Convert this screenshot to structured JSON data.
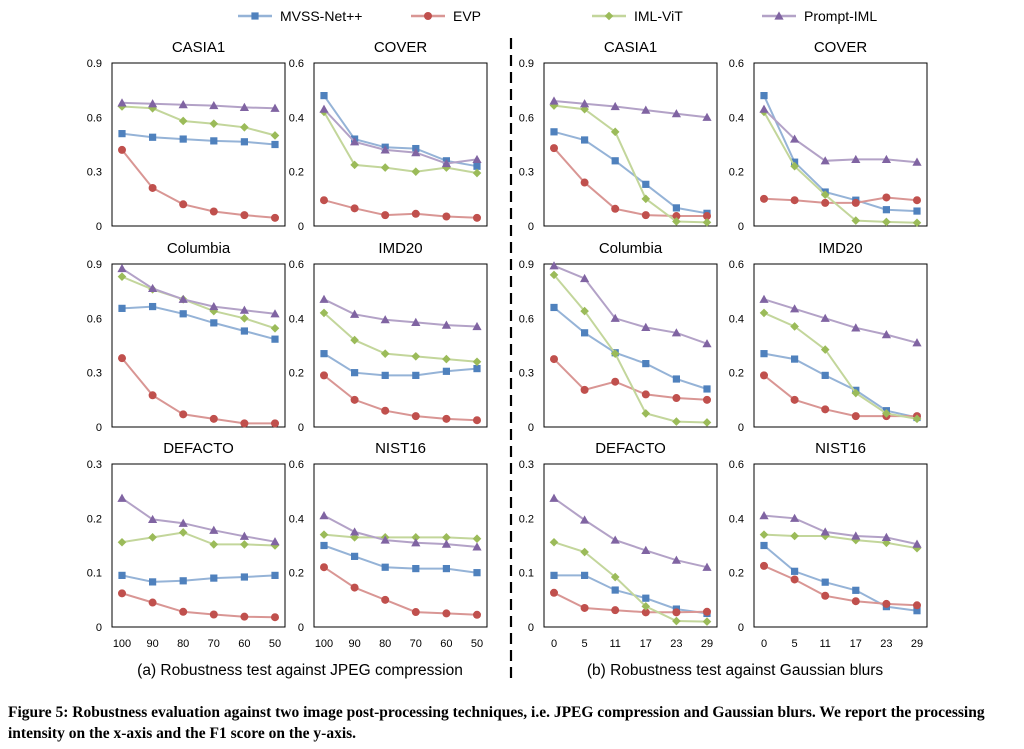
{
  "legend": {
    "entries": [
      {
        "name": "MVSS-Net++",
        "color": "#4f81bd",
        "marker": "square"
      },
      {
        "name": "EVP",
        "color": "#c0504d",
        "marker": "circle"
      },
      {
        "name": "IML-ViT",
        "color": "#9bbb59",
        "marker": "diamond"
      },
      {
        "name": "Prompt-IML",
        "color": "#8064a2",
        "marker": "triangle"
      }
    ]
  },
  "subcaptions": {
    "a": "(a) Robustness test against JPEG compression",
    "b": "(b) Robustness test against Gaussian blurs"
  },
  "caption": "Figure 5: Robustness evaluation against two image post-processing techniques, i.e. JPEG compression and Gaussian blurs. We report the processing intensity on the x-axis and the F1 score on the y-axis.",
  "chart_data": [
    {
      "type": "line",
      "title": "CASIA1",
      "group": "JPEG",
      "x": [
        "100",
        "90",
        "80",
        "70",
        "60",
        "50"
      ],
      "ylim": [
        0,
        0.9
      ],
      "yticks": [
        "0",
        "0.3",
        "0.6",
        "0.9"
      ],
      "series": [
        {
          "name": "MVSS-Net++",
          "values": [
            0.51,
            0.49,
            0.48,
            0.47,
            0.465,
            0.45
          ]
        },
        {
          "name": "EVP",
          "values": [
            0.42,
            0.21,
            0.12,
            0.08,
            0.06,
            0.045
          ]
        },
        {
          "name": "IML-ViT",
          "values": [
            0.66,
            0.65,
            0.58,
            0.565,
            0.545,
            0.5
          ]
        },
        {
          "name": "Prompt-IML",
          "values": [
            0.68,
            0.675,
            0.67,
            0.665,
            0.655,
            0.65
          ]
        }
      ]
    },
    {
      "type": "line",
      "title": "COVER",
      "group": "JPEG",
      "x": [
        "100",
        "90",
        "80",
        "70",
        "60",
        "50"
      ],
      "ylim": [
        0,
        0.6
      ],
      "yticks": [
        "0",
        "0.2",
        "0.4",
        "0.6"
      ],
      "series": [
        {
          "name": "MVSS-Net++",
          "values": [
            0.48,
            0.32,
            0.29,
            0.285,
            0.24,
            0.22
          ]
        },
        {
          "name": "EVP",
          "values": [
            0.095,
            0.065,
            0.04,
            0.045,
            0.035,
            0.03
          ]
        },
        {
          "name": "IML-ViT",
          "values": [
            0.42,
            0.225,
            0.215,
            0.2,
            0.215,
            0.195
          ]
        },
        {
          "name": "Prompt-IML",
          "values": [
            0.43,
            0.31,
            0.28,
            0.27,
            0.23,
            0.245
          ]
        }
      ]
    },
    {
      "type": "line",
      "title": "CASIA1",
      "group": "Blur",
      "x": [
        "0",
        "5",
        "11",
        "17",
        "23",
        "29"
      ],
      "ylim": [
        0,
        0.9
      ],
      "yticks": [
        "0",
        "0.3",
        "0.6",
        "0.9"
      ],
      "series": [
        {
          "name": "MVSS-Net++",
          "values": [
            0.52,
            0.475,
            0.36,
            0.23,
            0.1,
            0.07
          ]
        },
        {
          "name": "EVP",
          "values": [
            0.43,
            0.24,
            0.095,
            0.06,
            0.055,
            0.055
          ]
        },
        {
          "name": "IML-ViT",
          "values": [
            0.665,
            0.645,
            0.52,
            0.15,
            0.025,
            0.02
          ]
        },
        {
          "name": "Prompt-IML",
          "values": [
            0.69,
            0.675,
            0.66,
            0.64,
            0.62,
            0.6
          ]
        }
      ]
    },
    {
      "type": "line",
      "title": "COVER",
      "group": "Blur",
      "x": [
        "0",
        "5",
        "11",
        "17",
        "23",
        "29"
      ],
      "ylim": [
        0,
        0.6
      ],
      "yticks": [
        "0",
        "0.2",
        "0.4",
        "0.6"
      ],
      "series": [
        {
          "name": "MVSS-Net++",
          "values": [
            0.48,
            0.235,
            0.125,
            0.095,
            0.06,
            0.055
          ]
        },
        {
          "name": "EVP",
          "values": [
            0.1,
            0.095,
            0.085,
            0.085,
            0.105,
            0.095
          ]
        },
        {
          "name": "IML-ViT",
          "values": [
            0.42,
            0.22,
            0.115,
            0.02,
            0.015,
            0.012
          ]
        },
        {
          "name": "Prompt-IML",
          "values": [
            0.43,
            0.32,
            0.24,
            0.245,
            0.245,
            0.235
          ]
        }
      ]
    },
    {
      "type": "line",
      "title": "Columbia",
      "group": "JPEG",
      "x": [
        "100",
        "90",
        "80",
        "70",
        "60",
        "50"
      ],
      "ylim": [
        0,
        0.9
      ],
      "yticks": [
        "0",
        "0.3",
        "0.6",
        "0.9"
      ],
      "series": [
        {
          "name": "MVSS-Net++",
          "values": [
            0.655,
            0.665,
            0.625,
            0.575,
            0.53,
            0.485
          ]
        },
        {
          "name": "EVP",
          "values": [
            0.38,
            0.175,
            0.07,
            0.045,
            0.02,
            0.02
          ]
        },
        {
          "name": "IML-ViT",
          "values": [
            0.83,
            0.76,
            0.705,
            0.64,
            0.6,
            0.545
          ]
        },
        {
          "name": "Prompt-IML",
          "values": [
            0.875,
            0.765,
            0.705,
            0.665,
            0.645,
            0.625
          ]
        }
      ]
    },
    {
      "type": "line",
      "title": "IMD20",
      "group": "JPEG",
      "x": [
        "100",
        "90",
        "80",
        "70",
        "60",
        "50"
      ],
      "ylim": [
        0,
        0.6
      ],
      "yticks": [
        "0",
        "0.2",
        "0.4",
        "0.6"
      ],
      "series": [
        {
          "name": "MVSS-Net++",
          "values": [
            0.27,
            0.2,
            0.19,
            0.19,
            0.205,
            0.215
          ]
        },
        {
          "name": "EVP",
          "values": [
            0.19,
            0.1,
            0.06,
            0.04,
            0.03,
            0.025
          ]
        },
        {
          "name": "IML-ViT",
          "values": [
            0.42,
            0.32,
            0.27,
            0.26,
            0.25,
            0.24
          ]
        },
        {
          "name": "Prompt-IML",
          "values": [
            0.47,
            0.415,
            0.395,
            0.385,
            0.375,
            0.37
          ]
        }
      ]
    },
    {
      "type": "line",
      "title": "Columbia",
      "group": "Blur",
      "x": [
        "0",
        "5",
        "11",
        "17",
        "23",
        "29"
      ],
      "ylim": [
        0,
        0.9
      ],
      "yticks": [
        "0",
        "0.3",
        "0.6",
        "0.9"
      ],
      "series": [
        {
          "name": "MVSS-Net++",
          "values": [
            0.66,
            0.52,
            0.41,
            0.35,
            0.265,
            0.21
          ]
        },
        {
          "name": "EVP",
          "values": [
            0.375,
            0.205,
            0.25,
            0.18,
            0.16,
            0.15
          ]
        },
        {
          "name": "IML-ViT",
          "values": [
            0.84,
            0.64,
            0.405,
            0.075,
            0.03,
            0.025
          ]
        },
        {
          "name": "Prompt-IML",
          "values": [
            0.89,
            0.82,
            0.6,
            0.55,
            0.52,
            0.46
          ]
        }
      ]
    },
    {
      "type": "line",
      "title": "IMD20",
      "group": "Blur",
      "x": [
        "0",
        "5",
        "11",
        "17",
        "23",
        "29"
      ],
      "ylim": [
        0,
        0.6
      ],
      "yticks": [
        "0",
        "0.2",
        "0.4",
        "0.6"
      ],
      "series": [
        {
          "name": "MVSS-Net++",
          "values": [
            0.27,
            0.25,
            0.19,
            0.135,
            0.06,
            0.035
          ]
        },
        {
          "name": "EVP",
          "values": [
            0.19,
            0.1,
            0.065,
            0.04,
            0.04,
            0.04
          ]
        },
        {
          "name": "IML-ViT",
          "values": [
            0.42,
            0.37,
            0.285,
            0.125,
            0.05,
            0.03
          ]
        },
        {
          "name": "Prompt-IML",
          "values": [
            0.47,
            0.435,
            0.4,
            0.365,
            0.34,
            0.31
          ]
        }
      ]
    },
    {
      "type": "line",
      "title": "DEFACTO",
      "group": "JPEG",
      "x": [
        "100",
        "90",
        "80",
        "70",
        "60",
        "50"
      ],
      "ylim": [
        0,
        0.3
      ],
      "yticks": [
        "0",
        "0.1",
        "0.2",
        "0.3"
      ],
      "series": [
        {
          "name": "MVSS-Net++",
          "values": [
            0.095,
            0.083,
            0.085,
            0.09,
            0.092,
            0.095
          ]
        },
        {
          "name": "EVP",
          "values": [
            0.062,
            0.045,
            0.028,
            0.023,
            0.019,
            0.018
          ]
        },
        {
          "name": "IML-ViT",
          "values": [
            0.156,
            0.165,
            0.174,
            0.152,
            0.152,
            0.15
          ]
        },
        {
          "name": "Prompt-IML",
          "values": [
            0.237,
            0.198,
            0.191,
            0.178,
            0.167,
            0.157
          ]
        }
      ]
    },
    {
      "type": "line",
      "title": "NIST16",
      "group": "JPEG",
      "x": [
        "100",
        "90",
        "80",
        "70",
        "60",
        "50"
      ],
      "ylim": [
        0,
        0.6
      ],
      "yticks": [
        "0",
        "0.2",
        "0.4",
        "0.6"
      ],
      "series": [
        {
          "name": "MVSS-Net++",
          "values": [
            0.3,
            0.26,
            0.22,
            0.215,
            0.215,
            0.2
          ]
        },
        {
          "name": "EVP",
          "values": [
            0.22,
            0.145,
            0.1,
            0.055,
            0.05,
            0.045
          ]
        },
        {
          "name": "IML-ViT",
          "values": [
            0.34,
            0.33,
            0.33,
            0.33,
            0.33,
            0.325
          ]
        },
        {
          "name": "Prompt-IML",
          "values": [
            0.41,
            0.35,
            0.32,
            0.31,
            0.305,
            0.295
          ]
        }
      ]
    },
    {
      "type": "line",
      "title": "DEFACTO",
      "group": "Blur",
      "x": [
        "0",
        "5",
        "11",
        "17",
        "23",
        "29"
      ],
      "ylim": [
        0,
        0.3
      ],
      "yticks": [
        "0",
        "0.1",
        "0.2",
        "0.3"
      ],
      "series": [
        {
          "name": "MVSS-Net++",
          "values": [
            0.095,
            0.095,
            0.068,
            0.053,
            0.033,
            0.025
          ]
        },
        {
          "name": "EVP",
          "values": [
            0.063,
            0.035,
            0.031,
            0.027,
            0.027,
            0.028
          ]
        },
        {
          "name": "IML-ViT",
          "values": [
            0.156,
            0.138,
            0.092,
            0.038,
            0.011,
            0.01
          ]
        },
        {
          "name": "Prompt-IML",
          "values": [
            0.237,
            0.197,
            0.16,
            0.141,
            0.123,
            0.11
          ]
        }
      ]
    },
    {
      "type": "line",
      "title": "NIST16",
      "group": "Blur",
      "x": [
        "0",
        "5",
        "11",
        "17",
        "23",
        "29"
      ],
      "ylim": [
        0,
        0.6
      ],
      "yticks": [
        "0",
        "0.2",
        "0.4",
        "0.6"
      ],
      "series": [
        {
          "name": "MVSS-Net++",
          "values": [
            0.3,
            0.205,
            0.165,
            0.135,
            0.075,
            0.06
          ]
        },
        {
          "name": "EVP",
          "values": [
            0.225,
            0.175,
            0.115,
            0.095,
            0.085,
            0.08
          ]
        },
        {
          "name": "IML-ViT",
          "values": [
            0.34,
            0.335,
            0.335,
            0.32,
            0.31,
            0.29
          ]
        },
        {
          "name": "Prompt-IML",
          "values": [
            0.41,
            0.4,
            0.35,
            0.335,
            0.33,
            0.305
          ]
        }
      ]
    }
  ]
}
